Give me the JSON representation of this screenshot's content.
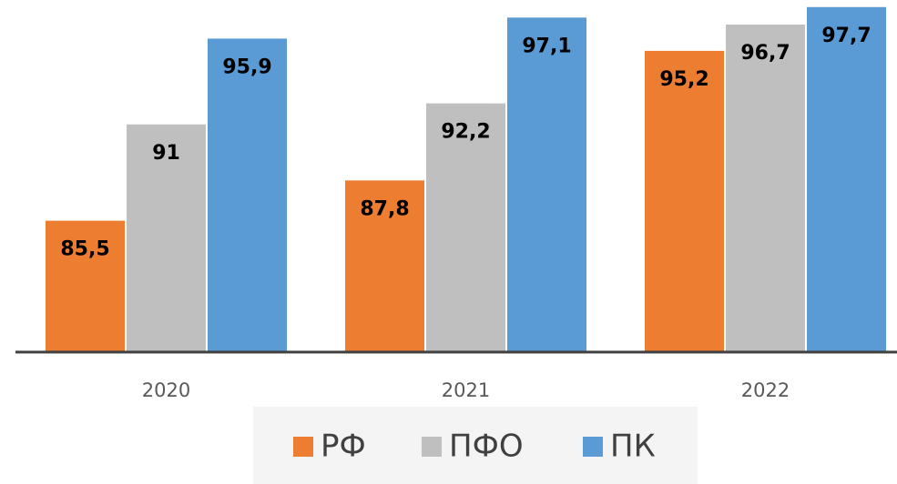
{
  "chart_data": {
    "type": "bar",
    "categories": [
      "2020",
      "2021",
      "2022"
    ],
    "series": [
      {
        "name": "РФ",
        "color": "#ed7d31",
        "values": [
          85.5,
          87.8,
          95.2
        ],
        "value_labels": [
          "85,5",
          "87,8",
          "95,2"
        ]
      },
      {
        "name": "ПФО",
        "color": "#bfbfbf",
        "values": [
          91,
          92.2,
          96.7
        ],
        "value_labels": [
          "91",
          "92,2",
          "96,7"
        ]
      },
      {
        "name": "ПК",
        "color": "#5b9bd5",
        "values": [
          95.9,
          97.1,
          97.7
        ],
        "value_labels": [
          "95,9",
          "97,1",
          "97,7"
        ]
      }
    ],
    "ylim": [
      78,
      98
    ],
    "legend": "bottom"
  }
}
